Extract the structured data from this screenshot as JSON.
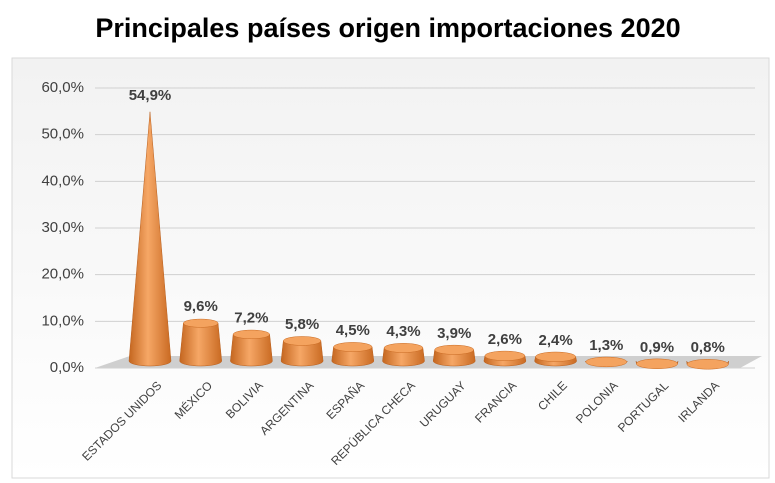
{
  "chart_data": {
    "type": "cone",
    "title": "Principales países origen importaciones 2020",
    "categories": [
      "ESTADOS UNIDOS",
      "MÉXICO",
      "BOLIVIA",
      "ARGENTINA",
      "ESPAÑA",
      "REPÚBLICA CHECA",
      "URUGUAY",
      "FRANCIA",
      "CHILE",
      "POLONIA",
      "PORTUGAL",
      "IRLANDA"
    ],
    "values": [
      54.9,
      9.6,
      7.2,
      5.8,
      4.5,
      4.3,
      3.9,
      2.6,
      2.4,
      1.3,
      0.9,
      0.8
    ],
    "value_labels": [
      "54,9%",
      "9,6%",
      "7,2%",
      "5,8%",
      "4,5%",
      "4,3%",
      "3,9%",
      "2,6%",
      "2,4%",
      "1,3%",
      "0,9%",
      "0,8%"
    ],
    "color": "#e8883a",
    "ylim": [
      0,
      60
    ],
    "yticks": [
      {
        "value": 0,
        "label": "0,0%"
      },
      {
        "value": 10,
        "label": "10,0%"
      },
      {
        "value": 20,
        "label": "20,0%"
      },
      {
        "value": 30,
        "label": "30,0%"
      },
      {
        "value": 40,
        "label": "40,0%"
      },
      {
        "value": 50,
        "label": "50,0%"
      },
      {
        "value": 60,
        "label": "60,0%"
      }
    ],
    "grid": true
  }
}
